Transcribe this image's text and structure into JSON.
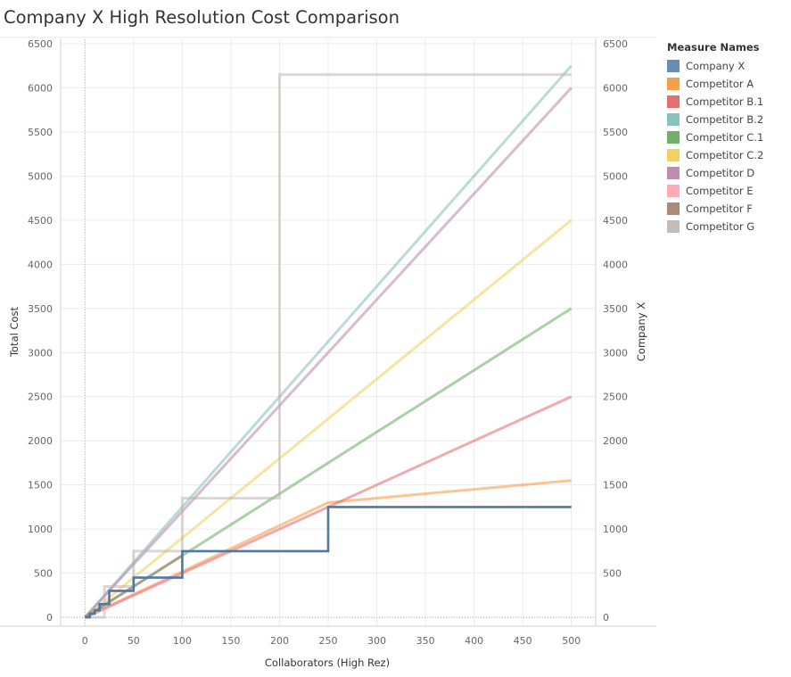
{
  "chart_data": {
    "type": "line",
    "title": "Company X High Resolution Cost Comparison",
    "xlabel": "Collaborators (High Rez)",
    "ylabel": "Total Cost",
    "y2label": "Company X",
    "xlim": [
      -25,
      525
    ],
    "ylim": [
      -100,
      6550
    ],
    "xticks": [
      0,
      50,
      100,
      150,
      200,
      250,
      300,
      350,
      400,
      450,
      500
    ],
    "yticks": [
      0,
      500,
      1000,
      1500,
      2000,
      2500,
      3000,
      3500,
      4000,
      4500,
      5000,
      5500,
      6000,
      6500
    ],
    "grid": true,
    "legend_title": "Measure Names",
    "legend_position": "right",
    "series": [
      {
        "name": "Company X",
        "color": "#4e79a7",
        "points": [
          [
            0,
            0
          ],
          [
            5,
            0
          ],
          [
            5,
            40
          ],
          [
            10,
            40
          ],
          [
            10,
            80
          ],
          [
            15,
            80
          ],
          [
            15,
            150
          ],
          [
            25,
            150
          ],
          [
            25,
            300
          ],
          [
            50,
            300
          ],
          [
            50,
            450
          ],
          [
            100,
            450
          ],
          [
            100,
            750
          ],
          [
            250,
            750
          ],
          [
            250,
            1250
          ],
          [
            500,
            1250
          ]
        ]
      },
      {
        "name": "Competitor A",
        "color": "#f28e2b",
        "points": [
          [
            0,
            0
          ],
          [
            250,
            1300
          ],
          [
            500,
            1550
          ]
        ]
      },
      {
        "name": "Competitor B.1",
        "color": "#e15759",
        "points": [
          [
            0,
            0
          ],
          [
            500,
            2500
          ]
        ]
      },
      {
        "name": "Competitor B.2",
        "color": "#76b7b2",
        "points": [
          [
            0,
            0
          ],
          [
            500,
            6250
          ]
        ]
      },
      {
        "name": "Competitor C.1",
        "color": "#59a14f",
        "points": [
          [
            0,
            0
          ],
          [
            500,
            3500
          ]
        ]
      },
      {
        "name": "Competitor C.2",
        "color": "#edc948",
        "points": [
          [
            0,
            0
          ],
          [
            500,
            4500
          ]
        ]
      },
      {
        "name": "Competitor D",
        "color": "#b07aa1",
        "points": [
          [
            0,
            0
          ],
          [
            500,
            6000
          ]
        ]
      },
      {
        "name": "Competitor E",
        "color": "#ff9da7",
        "points": [
          [
            0,
            0
          ],
          [
            25,
            120
          ],
          [
            50,
            250
          ],
          [
            100,
            500
          ]
        ]
      },
      {
        "name": "Competitor F",
        "color": "#9c755f",
        "points": [
          [
            0,
            0
          ],
          [
            100,
            700
          ]
        ]
      },
      {
        "name": "Competitor G",
        "color": "#bab0ac",
        "points": [
          [
            0,
            0
          ],
          [
            20,
            0
          ],
          [
            20,
            350
          ],
          [
            50,
            350
          ],
          [
            50,
            750
          ],
          [
            100,
            750
          ],
          [
            100,
            1350
          ],
          [
            200,
            1350
          ],
          [
            200,
            6150
          ],
          [
            500,
            6150
          ]
        ]
      }
    ]
  }
}
